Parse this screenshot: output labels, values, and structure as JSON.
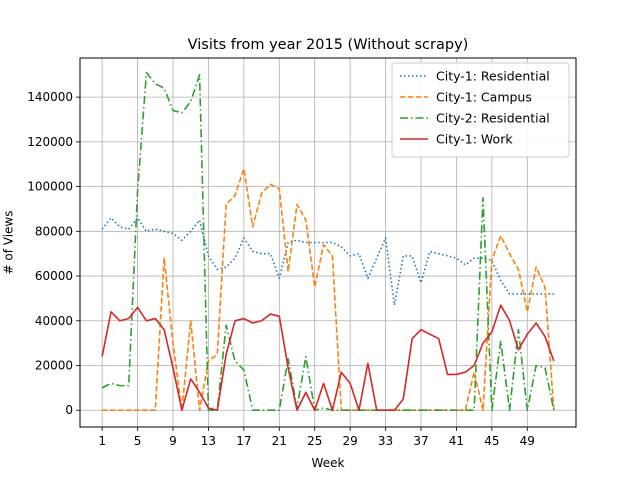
{
  "chart_data": {
    "type": "line",
    "title": "Visits from year 2015 (Without scrapy)",
    "xlabel": "Week",
    "ylabel": "# of Views",
    "xlim": [
      -1.5,
      54.5
    ],
    "ylim": [
      -7500,
      157500
    ],
    "x_ticks": [
      1,
      5,
      9,
      13,
      17,
      21,
      25,
      29,
      33,
      37,
      41,
      45,
      49
    ],
    "y_ticks": [
      0,
      20000,
      40000,
      60000,
      80000,
      100000,
      120000,
      140000
    ],
    "grid": true,
    "legend_position": "top-right",
    "x": [
      1,
      2,
      3,
      4,
      5,
      6,
      7,
      8,
      9,
      10,
      11,
      12,
      13,
      14,
      15,
      16,
      17,
      18,
      19,
      20,
      21,
      22,
      23,
      24,
      25,
      26,
      27,
      28,
      29,
      30,
      31,
      32,
      33,
      34,
      35,
      36,
      37,
      38,
      39,
      40,
      41,
      42,
      43,
      44,
      45,
      46,
      47,
      48,
      49,
      50,
      51,
      52
    ],
    "series": [
      {
        "name": "City-1: Residential",
        "color": "#1f77b4",
        "style": "dotted",
        "values": [
          81000,
          86000,
          82000,
          81000,
          86000,
          80000,
          81000,
          80000,
          79000,
          76000,
          80000,
          85000,
          69000,
          63000,
          64000,
          68000,
          77000,
          71000,
          70000,
          70000,
          59000,
          75000,
          76000,
          75000,
          75000,
          75000,
          75000,
          73000,
          69000,
          70000,
          59000,
          68000,
          77000,
          47000,
          69000,
          69000,
          57000,
          71000,
          70000,
          69000,
          68000,
          65000,
          68000,
          68000,
          67000,
          58000,
          52000,
          52000,
          52000,
          52000,
          52000,
          52000
        ]
      },
      {
        "name": "City-1: Campus",
        "color": "#ff7f0e",
        "style": "dashed",
        "values": [
          0,
          0,
          0,
          0,
          0,
          0,
          0,
          68000,
          30000,
          0,
          40000,
          0,
          22000,
          25000,
          92000,
          96000,
          108000,
          82000,
          97000,
          101000,
          99000,
          62000,
          92000,
          85000,
          55000,
          74000,
          69000,
          0,
          0,
          0,
          0,
          0,
          0,
          0,
          0,
          0,
          0,
          0,
          0,
          0,
          0,
          0,
          17000,
          0,
          67000,
          78000,
          70000,
          63000,
          44000,
          64000,
          55000,
          0
        ]
      },
      {
        "name": "City-2: Residential",
        "color": "#2ca02c",
        "style": "dashdot",
        "values": [
          10000,
          12000,
          11000,
          11000,
          98000,
          151000,
          146000,
          144000,
          134000,
          133000,
          138000,
          150000,
          0,
          0,
          38000,
          22000,
          18000,
          0,
          0,
          0,
          0,
          23000,
          1000,
          24000,
          0,
          1000,
          0,
          0,
          0,
          0,
          0,
          0,
          0,
          0,
          0,
          0,
          0,
          0,
          0,
          0,
          0,
          0,
          0,
          95000,
          0,
          31000,
          0,
          36000,
          0,
          20000,
          19000,
          0
        ]
      },
      {
        "name": "City-1: Work",
        "color": "#d62728",
        "style": "solid",
        "values": [
          24000,
          44000,
          40000,
          41000,
          46000,
          40000,
          41000,
          36000,
          19000,
          0,
          14000,
          8000,
          1000,
          0,
          25000,
          40000,
          41000,
          39000,
          40000,
          43000,
          42000,
          19000,
          0,
          8000,
          0,
          12000,
          0,
          17000,
          12000,
          0,
          21000,
          0,
          0,
          0,
          5000,
          32000,
          36000,
          34000,
          32000,
          16000,
          16000,
          17000,
          20000,
          30000,
          35000,
          47000,
          40000,
          27000,
          34000,
          39000,
          33000,
          22000
        ]
      }
    ]
  }
}
